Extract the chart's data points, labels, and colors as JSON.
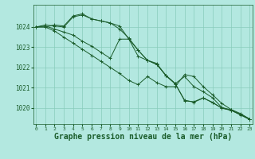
{
  "background_color": "#b3e8e0",
  "grid_color": "#88ccbb",
  "line_color": "#1a5c2a",
  "xlabel": "Graphe pression niveau de la mer (hPa)",
  "xlabel_fontsize": 7,
  "xtick_labels": [
    "0",
    "1",
    "2",
    "3",
    "4",
    "5",
    "6",
    "7",
    "8",
    "9",
    "10",
    "11",
    "12",
    "13",
    "14",
    "15",
    "16",
    "17",
    "18",
    "19",
    "20",
    "21",
    "22",
    "23"
  ],
  "ylim": [
    1019.2,
    1025.1
  ],
  "yticks": [
    1020,
    1021,
    1022,
    1023,
    1024
  ],
  "series": [
    [
      1024.0,
      1024.0,
      1024.1,
      1024.05,
      1024.55,
      1024.65,
      1024.4,
      1024.3,
      1024.2,
      1023.9,
      1023.45,
      1022.85,
      1022.35,
      1022.15,
      1021.6,
      1021.2,
      1020.35,
      1020.3,
      1020.5,
      1020.25,
      1020.0,
      1019.88,
      1019.65,
      1019.42
    ],
    [
      1024.0,
      1024.1,
      1024.05,
      1024.0,
      1024.5,
      1024.6,
      1024.4,
      1024.3,
      1024.2,
      1024.05,
      1023.4,
      1022.85,
      1022.35,
      1022.15,
      1021.6,
      1021.2,
      1021.55,
      1021.05,
      1020.8,
      1020.5,
      1020.02,
      1019.9,
      1019.68,
      1019.45
    ],
    [
      1024.0,
      1024.05,
      1023.9,
      1023.75,
      1023.6,
      1023.3,
      1023.05,
      1022.75,
      1022.45,
      1023.4,
      1023.4,
      1022.55,
      1022.35,
      1022.2,
      1021.58,
      1021.18,
      1020.38,
      1020.28,
      1020.48,
      1020.28,
      1019.98,
      1019.88,
      1019.67,
      1019.44
    ],
    [
      1024.0,
      1024.0,
      1023.8,
      1023.5,
      1023.2,
      1022.9,
      1022.6,
      1022.3,
      1022.0,
      1021.7,
      1021.35,
      1021.15,
      1021.55,
      1021.25,
      1021.05,
      1021.05,
      1021.65,
      1021.55,
      1021.05,
      1020.65,
      1020.22,
      1019.92,
      1019.72,
      1019.45
    ]
  ]
}
